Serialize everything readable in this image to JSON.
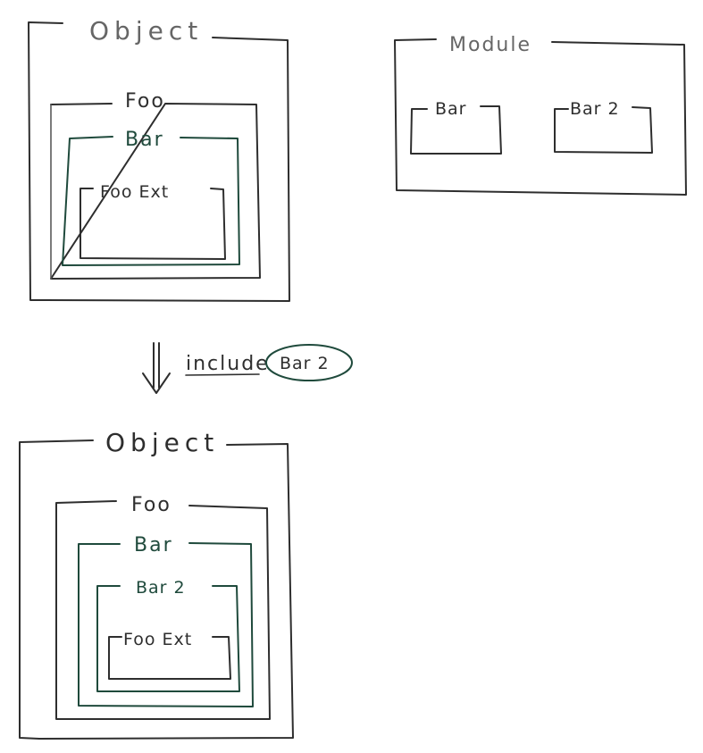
{
  "diagram": {
    "before": {
      "object": "Object",
      "foo": "Foo",
      "bar": "Bar",
      "foo_ext": "Foo Ext"
    },
    "module": {
      "title": "Module",
      "bar": "Bar",
      "bar2": "Bar 2"
    },
    "action": {
      "verb": "include",
      "target": "Bar 2"
    },
    "after": {
      "object": "Object",
      "foo": "Foo",
      "bar": "Bar",
      "bar2": "Bar 2",
      "foo_ext": "Foo Ext"
    }
  },
  "colors": {
    "ink": "#2e2e2e",
    "pencil": "#5a5a5a",
    "green_ink": "#1f4a3c"
  }
}
